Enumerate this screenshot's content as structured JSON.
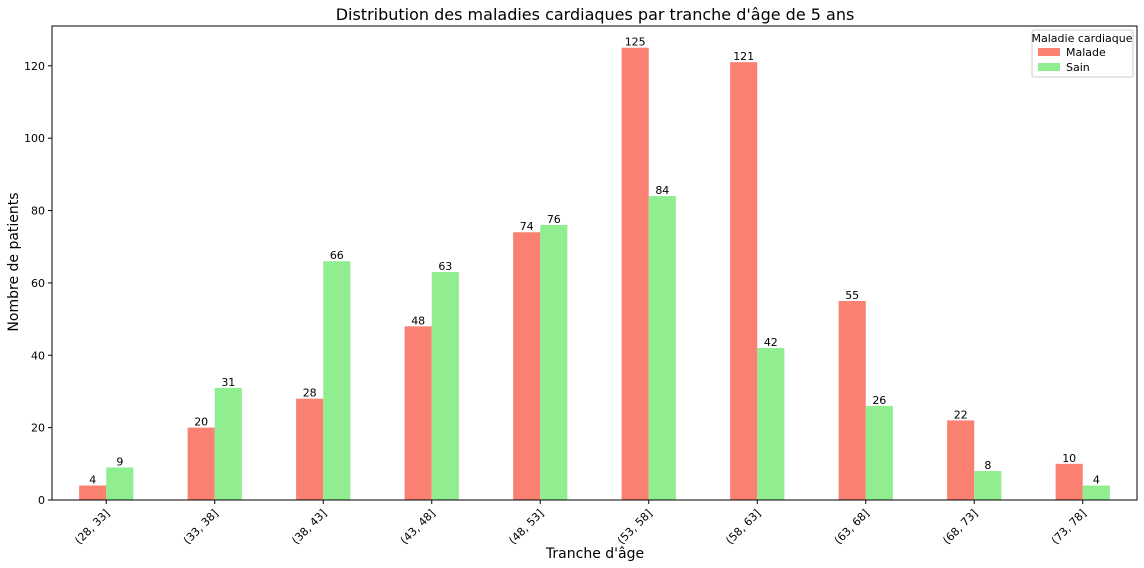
{
  "chart_data": {
    "type": "bar",
    "title": "Distribution des maladies cardiaques par tranche d'âge de 5 ans",
    "xlabel": "Tranche d'âge",
    "ylabel": "Nombre de patients",
    "ylim": [
      0,
      131
    ],
    "yticks": [
      0,
      20,
      40,
      60,
      80,
      100,
      120
    ],
    "grid": false,
    "legend": {
      "title": "Maladie cardiaque",
      "position": "top-right"
    },
    "categories": [
      "(28, 33]",
      "(33, 38]",
      "(38, 43]",
      "(43, 48]",
      "(48, 53]",
      "(53, 58]",
      "(58, 63]",
      "(63, 68]",
      "(68, 73]",
      "(73, 78]"
    ],
    "series": [
      {
        "name": "Malade",
        "color": "#fa8072",
        "values": [
          4,
          20,
          28,
          48,
          74,
          125,
          121,
          55,
          22,
          10
        ]
      },
      {
        "name": "Sain",
        "color": "#90ee90",
        "values": [
          9,
          31,
          66,
          63,
          76,
          84,
          42,
          26,
          8,
          4
        ]
      }
    ]
  }
}
